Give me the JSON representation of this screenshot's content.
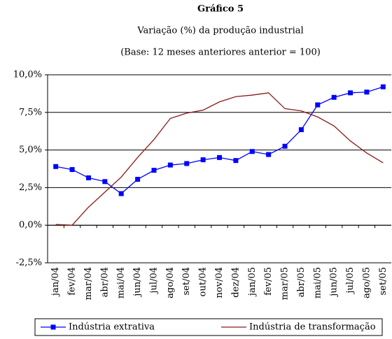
{
  "chart_data": {
    "type": "line",
    "title": "Gráfico 5",
    "subtitle": [
      "Variação (%) da produção industrial",
      "(Base: 12 meses anteriores anterior = 100)"
    ],
    "categories": [
      "jan/04",
      "fev/04",
      "mar/04",
      "abr/04",
      "mai/04",
      "jun/04",
      "jul/04",
      "ago/04",
      "set/04",
      "out/04",
      "nov/04",
      "dez/04",
      "jan/05",
      "fev/05",
      "mar/05",
      "abr/05",
      "mai/05",
      "jun/05",
      "jul/05",
      "ago/05",
      "set/05"
    ],
    "series": [
      {
        "name": "Indústria extrativa",
        "color": "#0000ff",
        "marker": "square",
        "values": [
          3.9,
          3.7,
          3.15,
          2.9,
          2.1,
          3.05,
          3.65,
          4.0,
          4.1,
          4.35,
          4.5,
          4.3,
          4.9,
          4.7,
          5.25,
          6.35,
          8.0,
          8.5,
          8.8,
          8.85,
          9.2
        ]
      },
      {
        "name": "Indústria de transformação",
        "color": "#8b1a1a",
        "marker": "none",
        "values": [
          0.05,
          0.0,
          1.2,
          2.2,
          3.2,
          4.5,
          5.7,
          7.1,
          7.45,
          7.65,
          8.2,
          8.55,
          8.65,
          8.8,
          7.75,
          7.6,
          7.2,
          6.6,
          5.6,
          4.8,
          4.15
        ]
      }
    ],
    "ylim": [
      -2.5,
      10
    ],
    "yticks": [
      {
        "value": -2.5,
        "label": "-2,5%"
      },
      {
        "value": 0,
        "label": "0,0%"
      },
      {
        "value": 2.5,
        "label": "2,5%"
      },
      {
        "value": 5,
        "label": "5,0%"
      },
      {
        "value": 7.5,
        "label": "7,5%"
      },
      {
        "value": 10,
        "label": "10,0%"
      }
    ],
    "grid": true,
    "legend": "bottom"
  }
}
